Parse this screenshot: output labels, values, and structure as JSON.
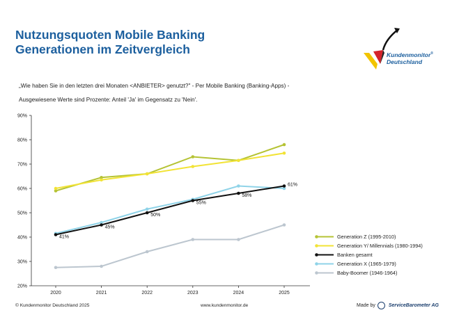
{
  "header": {
    "title_line1": "Nutzungsquoten Mobile Banking",
    "title_line2": "Generationen im Zeitvergleich",
    "question_line1": "„Wie haben Sie in den letzten drei Monaten <ANBIETER> genutzt?\" - Per Mobile Banking (Banking-Apps) -",
    "question_line2": "Ausgewiesene Werte sind Prozente: Anteil 'Ja' im Gegensatz zu 'Nein'."
  },
  "logo": {
    "name_line1": "Kundenmonitor",
    "registered": "®",
    "name_line2": "Deutschland"
  },
  "footer": {
    "copyright": "© Kundenmonitor Deutschland 2025",
    "website": "www.kundenmonitor.de",
    "made_by": "Made by",
    "made_by_brand": "ServiceBarometer AG"
  },
  "chart_data": {
    "type": "line",
    "x": [
      "2020",
      "2021",
      "2022",
      "2023",
      "2024",
      "2025"
    ],
    "ylim": [
      20,
      90
    ],
    "yticks": [
      "20%",
      "30%",
      "40%",
      "50%",
      "60%",
      "70%",
      "80%",
      "90%"
    ],
    "grid": false,
    "legend": "bottom-right",
    "series": [
      {
        "name": "Generation Z (1995-2010)",
        "color": "#b5c334",
        "values": [
          59,
          64.5,
          66,
          73,
          71.5,
          78
        ]
      },
      {
        "name": "Generation Y/ Millennials (1980-1994)",
        "color": "#f2e335",
        "values": [
          60,
          63.5,
          66,
          69,
          71.5,
          74.5
        ]
      },
      {
        "name": "Banken gesamt",
        "color": "#111111",
        "values": [
          41,
          45,
          50,
          55,
          58,
          61
        ],
        "labels": [
          "41%",
          "45%",
          "50%",
          "55%",
          "58%",
          "61%"
        ]
      },
      {
        "name": "Generation X (1965-1979)",
        "color": "#8fd3e8",
        "values": [
          41.5,
          46,
          51.5,
          55.5,
          61,
          60
        ]
      },
      {
        "name": "Baby-Boomer (1946-1964)",
        "color": "#bcc6cf",
        "values": [
          27.5,
          28,
          34,
          39,
          39,
          45
        ]
      }
    ]
  }
}
